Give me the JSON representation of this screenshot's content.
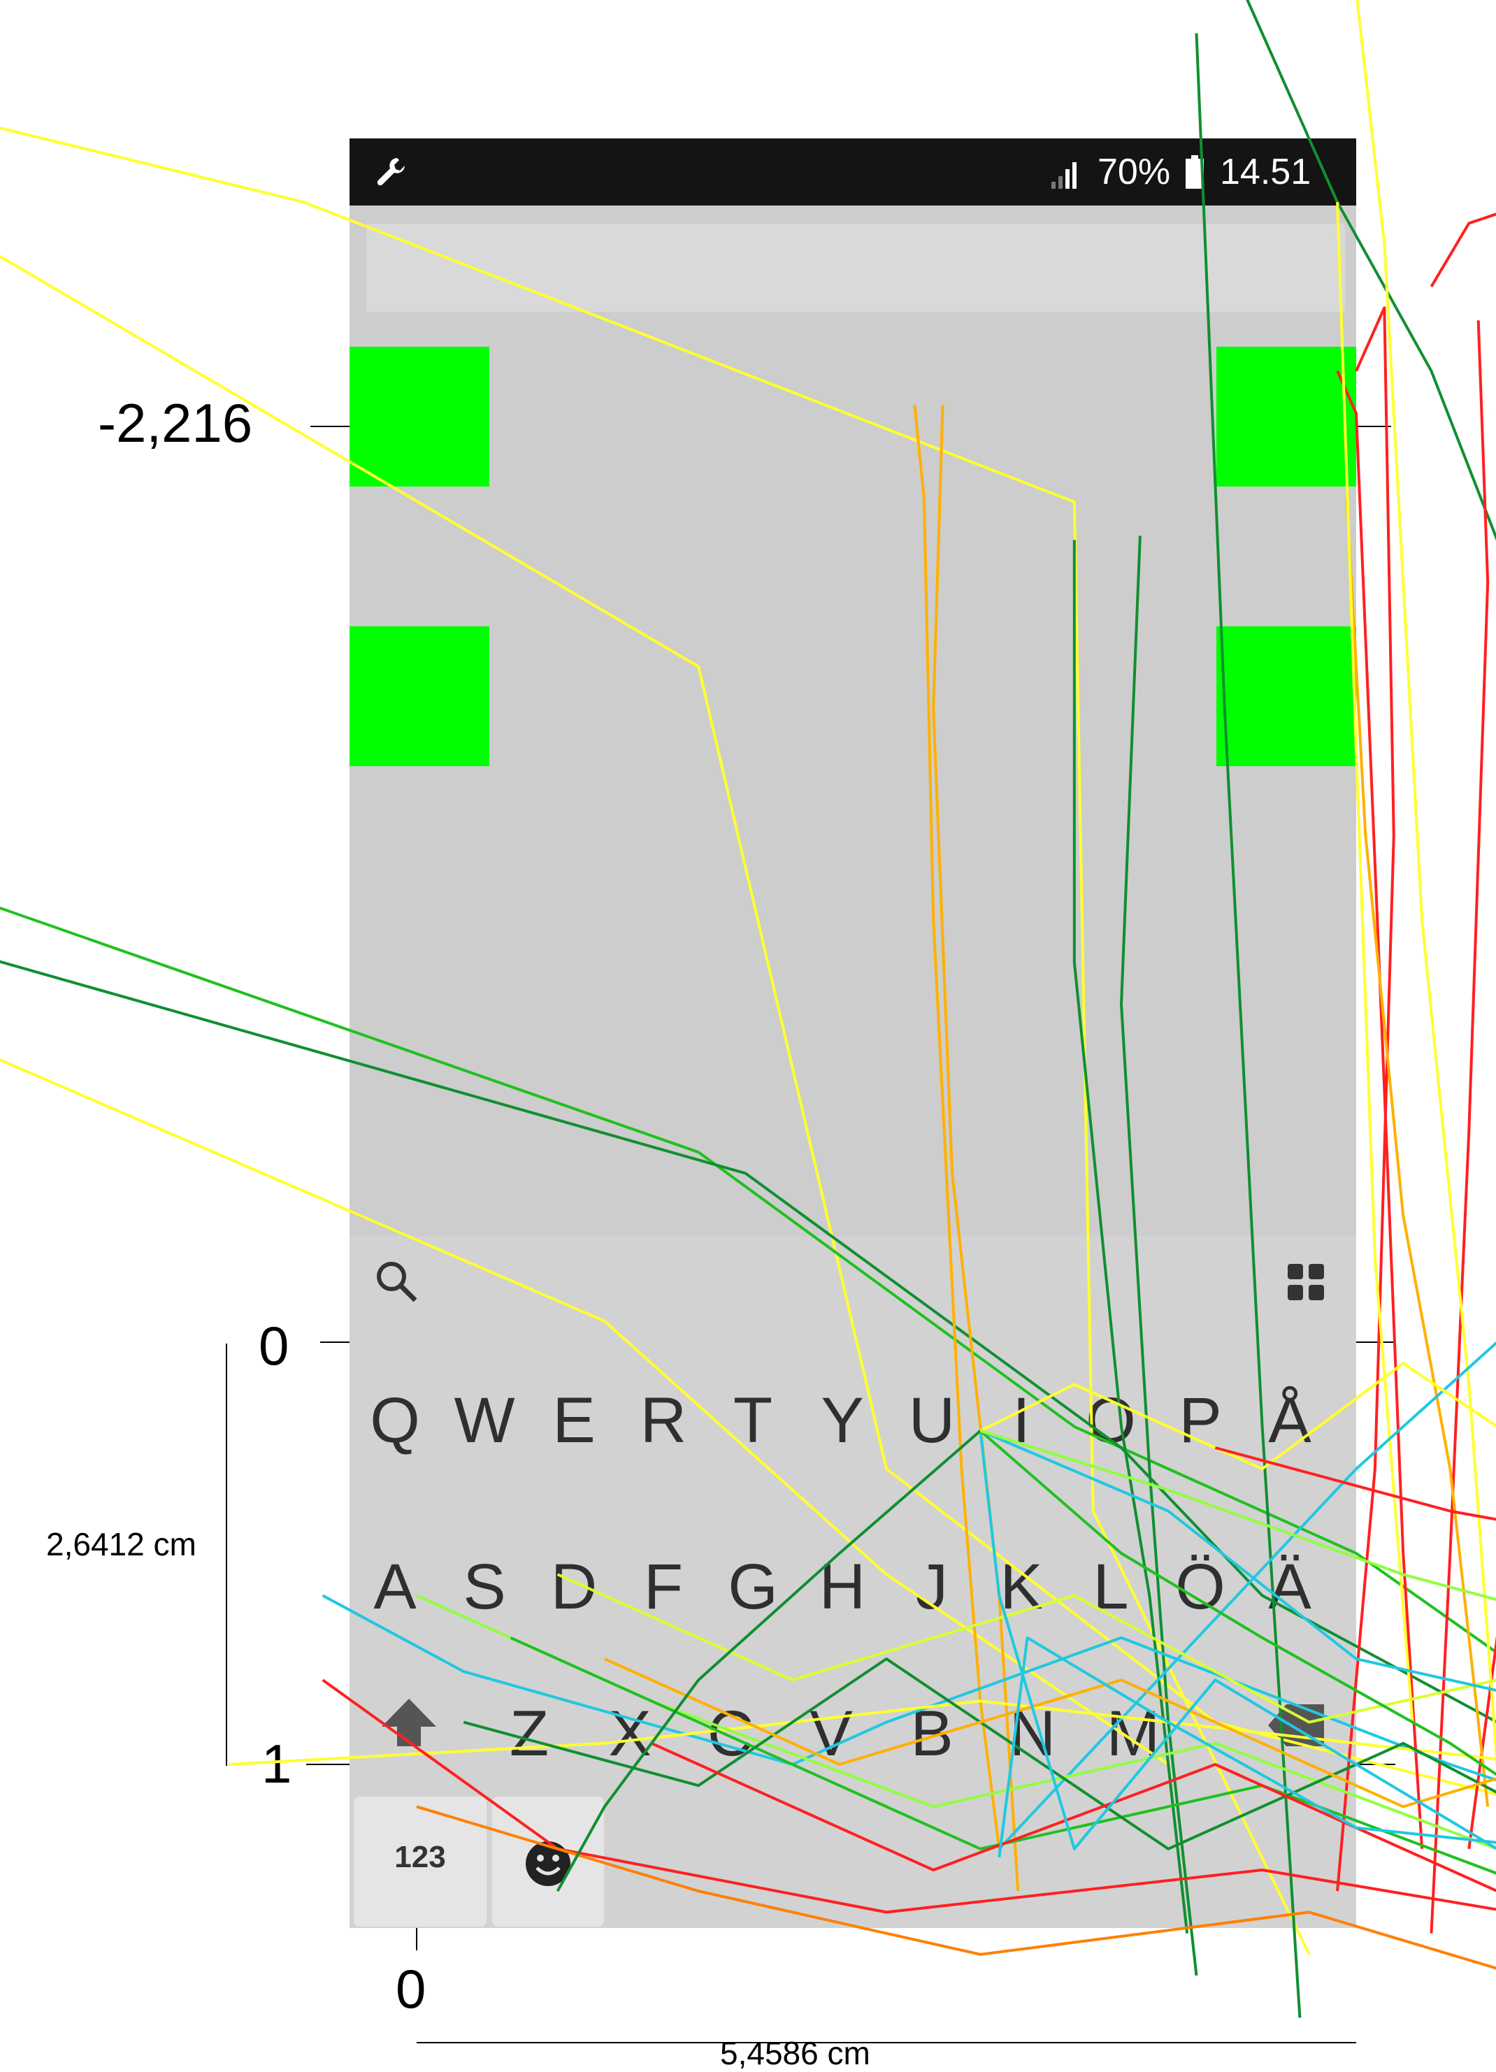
{
  "statusbar": {
    "icons": [
      "wrench-icon",
      "signal-icon",
      "battery-icon"
    ],
    "battery_percent": "70%",
    "time": "14.51"
  },
  "keyboard": {
    "row1": [
      "Q",
      "W",
      "E",
      "R",
      "T",
      "Y",
      "U",
      "I",
      "O",
      "P",
      "Å"
    ],
    "row2": [
      "A",
      "S",
      "D",
      "F",
      "G",
      "H",
      "J",
      "K",
      "L",
      "Ö",
      "Ä"
    ],
    "row3": [
      "Z",
      "X",
      "C",
      "V",
      "B",
      "N",
      "M"
    ],
    "numeric_label": "123",
    "icons": [
      "search-icon",
      "grid-icon",
      "shift-icon",
      "backspace-icon",
      "emoji-icon"
    ]
  },
  "axes": {
    "y_tick_top": "-2,216",
    "y_tick_zero": "0",
    "y_tick_one": "1",
    "x_tick_zero": "0",
    "y_unit_label": "2,6412 cm",
    "x_unit_label": "5,4586 cm"
  },
  "colors": {
    "target": "#00ff00",
    "screen_bg": "#cdcdcd",
    "statusbar_bg": "#141414",
    "trajectory_palette": [
      "#ff2020",
      "#ff8000",
      "#ffb000",
      "#ffff30",
      "#d8ff30",
      "#90ff40",
      "#20c020",
      "#108f30",
      "#20c8e0"
    ]
  },
  "chart_data": {
    "type": "line",
    "title": "",
    "xlabel": "5,4586 cm",
    "ylabel": "2,6412 cm",
    "y_ticks": [
      -2.216,
      0,
      1
    ],
    "x_ticks": [
      0
    ],
    "grid": false,
    "legend": "none",
    "series": [
      {
        "color": "#ffff30",
        "x": [
          -0.58,
          -0.12,
          0.7,
          0.72,
          0.95
        ],
        "y": [
          -2.95,
          -2.7,
          -1.99,
          0.4,
          1.45
        ]
      },
      {
        "color": "#ffff30",
        "x": [
          -0.58,
          0.3,
          0.5,
          0.85,
          1.2
        ],
        "y": [
          -2.75,
          -1.6,
          0.3,
          0.9,
          1.1
        ]
      },
      {
        "color": "#20c020",
        "x": [
          -0.6,
          0.3,
          0.7,
          1.0,
          1.35
        ],
        "y": [
          -1.15,
          -0.45,
          0.2,
          0.5,
          1.05
        ]
      },
      {
        "color": "#108f30",
        "x": [
          -0.6,
          0.35,
          0.75,
          0.9,
          1.4
        ],
        "y": [
          -1.0,
          -0.4,
          0.25,
          0.6,
          1.2
        ]
      },
      {
        "color": "#ffff30",
        "x": [
          -0.58,
          0.2,
          0.5,
          0.8
        ],
        "y": [
          -0.8,
          -0.05,
          0.55,
          1.0
        ]
      },
      {
        "color": "#ffb000",
        "x": [
          0.53,
          0.54,
          0.55,
          0.58,
          0.6,
          0.62
        ],
        "y": [
          -2.22,
          -2.0,
          -1.0,
          0.3,
          0.85,
          1.2
        ]
      },
      {
        "color": "#ffb000",
        "x": [
          0.56,
          0.55,
          0.57,
          0.62,
          0.64
        ],
        "y": [
          -2.22,
          -1.5,
          -0.4,
          0.6,
          1.3
        ]
      },
      {
        "color": "#108f30",
        "x": [
          0.7,
          0.7,
          0.75,
          0.78,
          0.8,
          0.82
        ],
        "y": [
          -1.9,
          -0.9,
          0.2,
          0.6,
          1.0,
          1.4
        ]
      },
      {
        "color": "#108f30",
        "x": [
          0.77,
          0.75,
          0.78,
          0.8,
          0.83
        ],
        "y": [
          -1.91,
          -0.8,
          0.3,
          0.9,
          1.5
        ]
      },
      {
        "color": "#108f30",
        "x": [
          0.83,
          0.86,
          0.9,
          0.94
        ],
        "y": [
          -3.1,
          -1.5,
          0.2,
          1.6
        ]
      },
      {
        "color": "#108f30",
        "x": [
          0.88,
          0.98,
          1.08,
          1.22,
          1.35
        ],
        "y": [
          -3.2,
          -2.7,
          -2.3,
          -1.5,
          0.9
        ]
      },
      {
        "color": "#ff2020",
        "x": [
          1.08,
          1.12,
          1.2,
          1.26,
          1.28,
          1.24,
          1.18,
          1.12
        ],
        "y": [
          -2.5,
          -2.65,
          -2.71,
          -2.6,
          -2.3,
          -1.0,
          0.2,
          1.2
        ]
      },
      {
        "color": "#ff2020",
        "x": [
          0.98,
          1.0,
          1.03,
          1.05,
          1.07
        ],
        "y": [
          -2.3,
          -2.2,
          -0.6,
          0.5,
          1.2
        ]
      },
      {
        "color": "#ff2020",
        "x": [
          1.0,
          1.03,
          1.04,
          1.02,
          0.98
        ],
        "y": [
          -2.3,
          -2.45,
          -1.2,
          0.3,
          1.3
        ]
      },
      {
        "color": "#ff2020",
        "x": [
          1.13,
          1.14,
          1.12,
          1.1,
          1.08
        ],
        "y": [
          -2.42,
          -1.8,
          -0.5,
          0.5,
          1.4
        ]
      },
      {
        "color": "#ff8000",
        "x": [
          1.15,
          1.2,
          1.3,
          1.38,
          1.42
        ],
        "y": [
          -2.2,
          -2.0,
          -2.5,
          -3.2,
          -3.5
        ]
      },
      {
        "color": "#ffb000",
        "x": [
          0.99,
          1.01,
          1.05,
          1.1,
          1.14
        ],
        "y": [
          -2.0,
          -1.2,
          -0.3,
          0.3,
          1.1
        ]
      },
      {
        "color": "#ffff30",
        "x": [
          0.98,
          1.0,
          1.02,
          1.06
        ],
        "y": [
          -2.7,
          -1.4,
          -0.2,
          0.9
        ]
      },
      {
        "color": "#ffff30",
        "x": [
          1.0,
          1.03,
          1.07,
          1.12,
          1.15
        ],
        "y": [
          -3.2,
          -2.6,
          -1.0,
          0.1,
          1.0
        ]
      },
      {
        "color": "#d8ff30",
        "x": [
          1.38,
          1.5,
          1.6,
          1.55,
          1.48,
          1.4
        ],
        "y": [
          -2.0,
          -2.5,
          -2.8,
          -1.8,
          -0.4,
          0.9
        ]
      },
      {
        "color": "#20c8e0",
        "x": [
          1.2,
          1.35,
          1.52,
          1.58,
          1.6
        ],
        "y": [
          -1.67,
          -2.05,
          -2.6,
          -2.75,
          -2.6
        ]
      },
      {
        "color": "#20c8e0",
        "x": [
          1.6,
          1.45,
          1.25,
          1.0,
          0.62
        ],
        "y": [
          -1.35,
          -0.8,
          -0.2,
          0.3,
          1.2
        ]
      },
      {
        "color": "#20c8e0",
        "x": [
          -0.1,
          0.05,
          0.4,
          0.5,
          0.75,
          1.1,
          1.3
        ],
        "y": [
          0.6,
          0.78,
          1.0,
          0.9,
          0.7,
          1.0,
          1.15
        ]
      },
      {
        "color": "#108f30",
        "x": [
          1.33,
          1.36,
          1.38,
          1.36,
          1.3
        ],
        "y": [
          -2.1,
          -2.0,
          -1.0,
          0.2,
          1.3
        ]
      },
      {
        "color": "#108f30",
        "x": [
          1.4,
          1.44,
          1.45,
          1.44,
          1.4
        ],
        "y": [
          -2.0,
          -1.8,
          -0.6,
          0.5,
          1.5
        ]
      },
      {
        "color": "#ffff30",
        "x": [
          -0.2,
          0.2,
          0.6,
          1.0,
          1.4
        ],
        "y": [
          1.0,
          0.95,
          0.85,
          0.95,
          1.05
        ]
      },
      {
        "color": "#ff2020",
        "x": [
          -0.1,
          0.15,
          0.5,
          0.9,
          1.3,
          1.6
        ],
        "y": [
          0.8,
          1.2,
          1.35,
          1.25,
          1.4,
          1.55
        ]
      },
      {
        "color": "#ff8000",
        "x": [
          0.0,
          0.3,
          0.6,
          0.95,
          1.25
        ],
        "y": [
          1.1,
          1.3,
          1.45,
          1.35,
          1.55
        ]
      },
      {
        "color": "#90ff40",
        "x": [
          0.0,
          0.25,
          0.55,
          0.85,
          1.15,
          1.45
        ],
        "y": [
          0.6,
          0.85,
          1.1,
          0.95,
          1.2,
          1.0
        ]
      },
      {
        "color": "#20c020",
        "x": [
          0.1,
          0.35,
          0.6,
          0.9,
          1.2,
          1.5
        ],
        "y": [
          0.7,
          0.95,
          1.2,
          1.05,
          1.3,
          1.1
        ]
      },
      {
        "color": "#108f30",
        "x": [
          0.05,
          0.3,
          0.5,
          0.8,
          1.05,
          1.35
        ],
        "y": [
          0.9,
          1.05,
          0.75,
          1.2,
          0.95,
          1.3
        ]
      },
      {
        "color": "#d8ff30",
        "x": [
          0.15,
          0.4,
          0.7,
          0.95,
          1.25
        ],
        "y": [
          0.55,
          0.8,
          0.6,
          0.9,
          0.75
        ]
      },
      {
        "color": "#ffb000",
        "x": [
          0.2,
          0.45,
          0.75,
          1.05,
          1.35
        ],
        "y": [
          0.75,
          1.0,
          0.8,
          1.1,
          0.9
        ]
      },
      {
        "color": "#ff2020",
        "x": [
          0.25,
          0.55,
          0.85,
          1.15,
          1.5,
          1.65
        ],
        "y": [
          0.95,
          1.25,
          1.0,
          1.3,
          1.1,
          1.5
        ]
      },
      {
        "color": "#20c8e0",
        "x": [
          0.6,
          0.62,
          0.7,
          0.85,
          1.0,
          1.15
        ],
        "y": [
          0.21,
          0.6,
          1.2,
          0.8,
          1.0,
          1.2
        ]
      },
      {
        "color": "#20c8e0",
        "x": [
          0.6,
          0.8,
          1.0,
          1.2,
          1.45
        ],
        "y": [
          0.21,
          0.4,
          0.75,
          0.85,
          0.95
        ]
      },
      {
        "color": "#20c8e0",
        "x": [
          0.62,
          0.65,
          0.8,
          1.0,
          1.3
        ],
        "y": [
          1.22,
          0.7,
          0.9,
          1.15,
          1.22
        ]
      },
      {
        "color": "#108f30",
        "x": [
          0.6,
          0.45,
          0.3,
          0.2,
          0.15
        ],
        "y": [
          0.21,
          0.5,
          0.8,
          1.1,
          1.3
        ]
      },
      {
        "color": "#20c020",
        "x": [
          0.6,
          0.75,
          0.9,
          1.1,
          1.3
        ],
        "y": [
          0.21,
          0.5,
          0.7,
          0.95,
          1.25
        ]
      },
      {
        "color": "#ffff30",
        "x": [
          0.6,
          0.7,
          0.9,
          1.05,
          1.25
        ],
        "y": [
          0.21,
          0.1,
          0.3,
          0.05,
          0.35
        ]
      },
      {
        "color": "#90ff40",
        "x": [
          0.6,
          0.8,
          1.05,
          1.3,
          1.5
        ],
        "y": [
          0.21,
          0.35,
          0.55,
          0.7,
          0.75
        ]
      },
      {
        "color": "#ff2020",
        "x": [
          0.85,
          1.1,
          1.35,
          1.6
        ],
        "y": [
          0.25,
          0.4,
          0.5,
          0.6
        ]
      }
    ]
  }
}
